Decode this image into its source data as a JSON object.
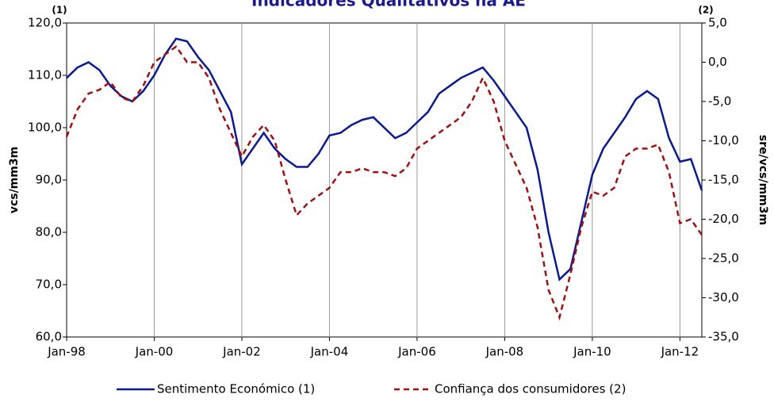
{
  "chart_data": {
    "type": "line",
    "title": "Indicadores Qualitativos na AE",
    "y_label": "vcs/mm3m",
    "y2_label": "sre/vcs/mm3m",
    "y_annotation": "(1)",
    "y2_annotation": "(2)",
    "categories": [
      "Jan-98",
      null,
      null,
      null,
      null,
      null,
      null,
      null,
      "Jan-00",
      null,
      null,
      null,
      null,
      null,
      null,
      null,
      "Jan-02",
      null,
      null,
      null,
      null,
      null,
      null,
      null,
      "Jan-04",
      null,
      null,
      null,
      null,
      null,
      null,
      null,
      "Jan-06",
      null,
      null,
      null,
      null,
      null,
      null,
      null,
      "Jan-08",
      null,
      null,
      null,
      null,
      null,
      null,
      null,
      "Jan-10",
      null,
      null,
      null,
      null,
      null,
      null,
      null,
      "Jan-12",
      null,
      null
    ],
    "ylim": [
      60,
      120
    ],
    "yticks": [
      {
        "value": 60,
        "label": "60,0"
      },
      {
        "value": 70,
        "label": "70,0"
      },
      {
        "value": 80,
        "label": "80,0"
      },
      {
        "value": 90,
        "label": "90,0"
      },
      {
        "value": 100,
        "label": "100,0"
      },
      {
        "value": 110,
        "label": "110,0"
      },
      {
        "value": 120,
        "label": "120,0"
      }
    ],
    "y2lim": [
      -35,
      5
    ],
    "y2ticks": [
      {
        "value": -35,
        "label": "-35,0"
      },
      {
        "value": -30,
        "label": "-30,0"
      },
      {
        "value": -25,
        "label": "-25,0"
      },
      {
        "value": -20,
        "label": "-20,0"
      },
      {
        "value": -15,
        "label": "-15,0"
      },
      {
        "value": -10,
        "label": "-10,0"
      },
      {
        "value": -5,
        "label": "-5,0"
      },
      {
        "value": 0,
        "label": "0,0"
      },
      {
        "value": 5,
        "label": "5,0"
      }
    ],
    "grid": true,
    "series": [
      {
        "name": "Sentimento Económico (1)",
        "color": "#0a1a8f",
        "dash": false,
        "values": [
          109.5,
          111.5,
          112.5,
          111,
          108,
          106,
          105,
          107,
          110,
          114,
          117,
          116.5,
          113.5,
          111,
          107,
          103,
          93,
          96,
          99,
          96,
          94,
          92.5,
          92.5,
          95,
          98.5,
          99,
          100.5,
          101.5,
          102,
          100,
          98,
          99,
          101,
          103,
          106.5,
          108,
          109.5,
          110.5,
          111.5,
          109,
          106,
          103,
          100,
          92,
          80,
          71,
          73,
          82,
          91,
          96,
          99,
          102,
          105.5,
          107,
          105.5,
          98,
          93.5,
          94,
          88
        ]
      },
      {
        "name": "Confiança dos consumidores (2)",
        "color": "#a01010",
        "dash": true,
        "axis": "y2",
        "values": [
          -9.5,
          -6,
          -4,
          -3.5,
          -2.5,
          -4.5,
          -5,
          -3,
          0,
          1,
          2,
          0,
          0,
          -2,
          -6,
          -9,
          -12,
          -9.5,
          -8,
          -10,
          -15,
          -19.5,
          -18,
          -17,
          -16,
          -14,
          -14,
          -13.5,
          -14,
          -14,
          -14.5,
          -13.5,
          -11,
          -10,
          -9,
          -8,
          -7,
          -5,
          -2,
          -5,
          -10,
          -13,
          -16,
          -21,
          -29,
          -32.5,
          -27,
          -21,
          -16.5,
          -17,
          -16,
          -12,
          -11,
          -11,
          -10.5,
          -14,
          -20.5,
          -20,
          -22
        ]
      }
    ]
  }
}
